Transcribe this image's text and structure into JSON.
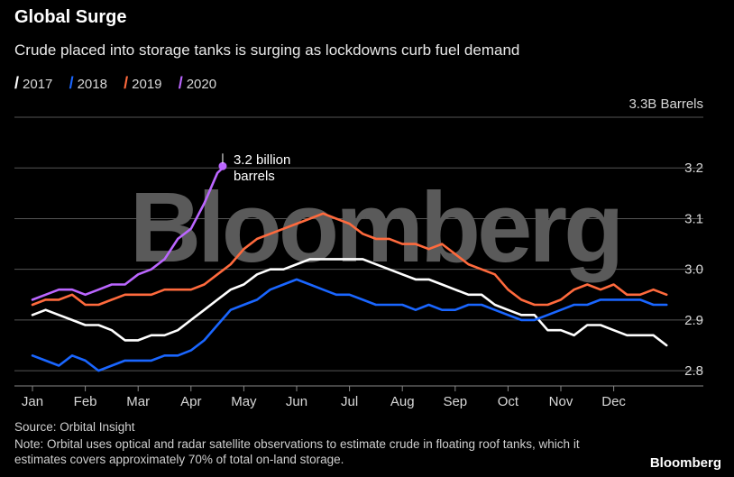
{
  "title": "Global Surge",
  "subtitle": "Crude placed into storage tanks is surging as lockdowns curb fuel demand",
  "legend": [
    {
      "label": "2017",
      "color": "#ffffff"
    },
    {
      "label": "2018",
      "color": "#1a66ff"
    },
    {
      "label": "2019",
      "color": "#ff6a3d"
    },
    {
      "label": "2020",
      "color": "#bb66ff"
    }
  ],
  "source": "Source: Orbital Insight",
  "note": "Note: Orbital uses optical and radar satellite observations to estimate crude in floating roof tanks, which it estimates covers approximately 70% of total on-land storage.",
  "brand": "Bloomberg",
  "watermark": "Bloomberg",
  "chart_data": {
    "type": "line",
    "x_label_unit": "month",
    "ylabel": "3.3B Barrels",
    "ylim": [
      2.77,
      3.3
    ],
    "yticks": [
      2.8,
      2.9,
      3.0,
      3.1,
      3.2
    ],
    "ytick_labels": [
      "2.8",
      "2.9",
      "3.0",
      "3.1",
      "3.2"
    ],
    "months": [
      "Jan",
      "Feb",
      "Mar",
      "Apr",
      "May",
      "Jun",
      "Jul",
      "Aug",
      "Sep",
      "Oct",
      "Nov",
      "Dec"
    ],
    "x_range": [
      0,
      12.15
    ],
    "grid": "horizontal",
    "annotation": {
      "lines": [
        "3.2 billion",
        "barrels"
      ],
      "x": 3.6,
      "y": 3.2
    },
    "series": [
      {
        "name": "2017",
        "color": "#ffffff",
        "x": [
          0,
          0.25,
          0.5,
          0.75,
          1,
          1.25,
          1.5,
          1.75,
          2,
          2.25,
          2.5,
          2.75,
          3,
          3.25,
          3.5,
          3.75,
          4,
          4.25,
          4.5,
          4.75,
          5,
          5.25,
          5.5,
          5.75,
          6,
          6.25,
          6.5,
          6.75,
          7,
          7.25,
          7.5,
          7.75,
          8,
          8.25,
          8.5,
          8.75,
          9,
          9.25,
          9.5,
          9.75,
          10,
          10.25,
          10.5,
          10.75,
          11,
          11.25,
          11.5,
          11.75,
          12
        ],
        "values": [
          2.91,
          2.92,
          2.91,
          2.9,
          2.89,
          2.89,
          2.88,
          2.86,
          2.86,
          2.87,
          2.87,
          2.88,
          2.9,
          2.92,
          2.94,
          2.96,
          2.97,
          2.99,
          3.0,
          3.0,
          3.01,
          3.02,
          3.02,
          3.02,
          3.02,
          3.02,
          3.01,
          3.0,
          2.99,
          2.98,
          2.98,
          2.97,
          2.96,
          2.95,
          2.95,
          2.93,
          2.92,
          2.91,
          2.91,
          2.88,
          2.88,
          2.87,
          2.89,
          2.89,
          2.88,
          2.87,
          2.87,
          2.87,
          2.85
        ]
      },
      {
        "name": "2018",
        "color": "#1a66ff",
        "x": [
          0,
          0.25,
          0.5,
          0.75,
          1,
          1.25,
          1.5,
          1.75,
          2,
          2.25,
          2.5,
          2.75,
          3,
          3.25,
          3.5,
          3.75,
          4,
          4.25,
          4.5,
          4.75,
          5,
          5.25,
          5.5,
          5.75,
          6,
          6.25,
          6.5,
          6.75,
          7,
          7.25,
          7.5,
          7.75,
          8,
          8.25,
          8.5,
          8.75,
          9,
          9.25,
          9.5,
          9.75,
          10,
          10.25,
          10.5,
          10.75,
          11,
          11.25,
          11.5,
          11.75,
          12
        ],
        "values": [
          2.83,
          2.82,
          2.81,
          2.83,
          2.82,
          2.8,
          2.81,
          2.82,
          2.82,
          2.82,
          2.83,
          2.83,
          2.84,
          2.86,
          2.89,
          2.92,
          2.93,
          2.94,
          2.96,
          2.97,
          2.98,
          2.97,
          2.96,
          2.95,
          2.95,
          2.94,
          2.93,
          2.93,
          2.93,
          2.92,
          2.93,
          2.92,
          2.92,
          2.93,
          2.93,
          2.92,
          2.91,
          2.9,
          2.9,
          2.91,
          2.92,
          2.93,
          2.93,
          2.94,
          2.94,
          2.94,
          2.94,
          2.93,
          2.93
        ]
      },
      {
        "name": "2019",
        "color": "#ff6a3d",
        "x": [
          0,
          0.25,
          0.5,
          0.75,
          1,
          1.25,
          1.5,
          1.75,
          2,
          2.25,
          2.5,
          2.75,
          3,
          3.25,
          3.5,
          3.75,
          4,
          4.25,
          4.5,
          4.75,
          5,
          5.25,
          5.5,
          5.75,
          6,
          6.25,
          6.5,
          6.75,
          7,
          7.25,
          7.5,
          7.75,
          8,
          8.25,
          8.5,
          8.75,
          9,
          9.25,
          9.5,
          9.75,
          10,
          10.25,
          10.5,
          10.75,
          11,
          11.25,
          11.5,
          11.75,
          12
        ],
        "values": [
          2.93,
          2.94,
          2.94,
          2.95,
          2.93,
          2.93,
          2.94,
          2.95,
          2.95,
          2.95,
          2.96,
          2.96,
          2.96,
          2.97,
          2.99,
          3.01,
          3.04,
          3.06,
          3.07,
          3.08,
          3.09,
          3.1,
          3.11,
          3.1,
          3.09,
          3.07,
          3.06,
          3.06,
          3.05,
          3.05,
          3.04,
          3.05,
          3.03,
          3.01,
          3.0,
          2.99,
          2.96,
          2.94,
          2.93,
          2.93,
          2.94,
          2.96,
          2.97,
          2.96,
          2.97,
          2.95,
          2.95,
          2.96,
          2.95
        ]
      },
      {
        "name": "2020",
        "color": "#bb66ff",
        "x": [
          0,
          0.25,
          0.5,
          0.75,
          1,
          1.25,
          1.5,
          1.75,
          2,
          2.25,
          2.5,
          2.75,
          3,
          3.25,
          3.5,
          3.6
        ],
        "values": [
          2.94,
          2.95,
          2.96,
          2.96,
          2.95,
          2.96,
          2.97,
          2.97,
          2.99,
          3.0,
          3.02,
          3.06,
          3.08,
          3.13,
          3.19,
          3.2
        ]
      }
    ]
  }
}
